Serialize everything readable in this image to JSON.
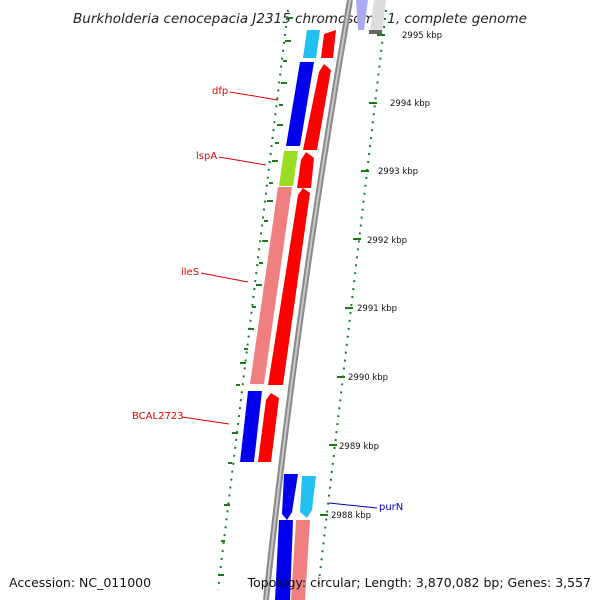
{
  "title": "Burkholderia cenocepacia J2315 chromosome 1, complete genome",
  "footer": {
    "accession": "Accession: NC_011000",
    "summary": "Topology: circular; Length: 3,870,082 bp; Genes: 3,557"
  },
  "colors": {
    "backbone": "#8a8a8a",
    "ruler": "#1c7a1c",
    "label_red": "#e00000",
    "label_blue": "#0000cc",
    "cds_forward": "#ff0000",
    "cds_reverse": "#0000ee",
    "cds_light_blue": "#22c0ee",
    "cds_salmon": "#f08080",
    "cds_green": "#99dd22"
  },
  "ruler_ticks": [
    "2995 kbp",
    "2994 kbp",
    "2993 kbp",
    "2992 kbp",
    "2991 kbp",
    "2990 kbp",
    "2989 kbp",
    "2988 kbp"
  ],
  "gene_labels": [
    {
      "name": "dfp",
      "color": "red"
    },
    {
      "name": "lspA",
      "color": "red"
    },
    {
      "name": "ileS",
      "color": "red"
    },
    {
      "name": "BCAL2723",
      "color": "red"
    },
    {
      "name": "purN",
      "color": "blue"
    }
  ]
}
